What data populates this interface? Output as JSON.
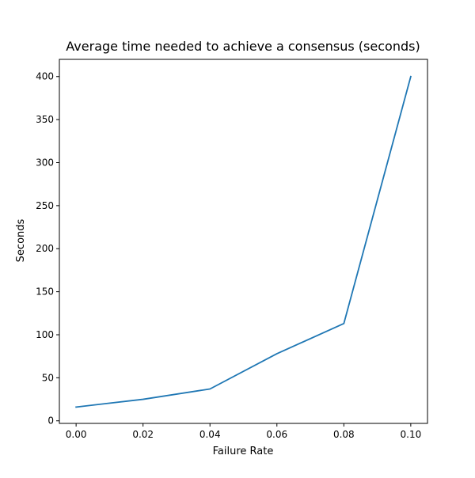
{
  "chart_data": {
    "type": "line",
    "title": "Average time needed to achieve a consensus (seconds)",
    "xlabel": "Failure Rate",
    "ylabel": "Seconds",
    "x": [
      0.0,
      0.02,
      0.04,
      0.06,
      0.08,
      0.1
    ],
    "series": [
      {
        "values": [
          16,
          25,
          37,
          78,
          113,
          400
        ],
        "color": "#1f77b4"
      }
    ],
    "xlim": [
      -0.005,
      0.105
    ],
    "ylim": [
      -3,
      420
    ],
    "xticks": [
      0.0,
      0.02,
      0.04,
      0.06,
      0.08,
      0.1
    ],
    "xtick_labels": [
      "0.00",
      "0.02",
      "0.04",
      "0.06",
      "0.08",
      "0.10"
    ],
    "yticks": [
      0,
      50,
      100,
      150,
      200,
      250,
      300,
      350,
      400
    ],
    "ytick_labels": [
      "0",
      "50",
      "100",
      "150",
      "200",
      "250",
      "300",
      "350",
      "400"
    ],
    "grid": false,
    "legend": false
  }
}
